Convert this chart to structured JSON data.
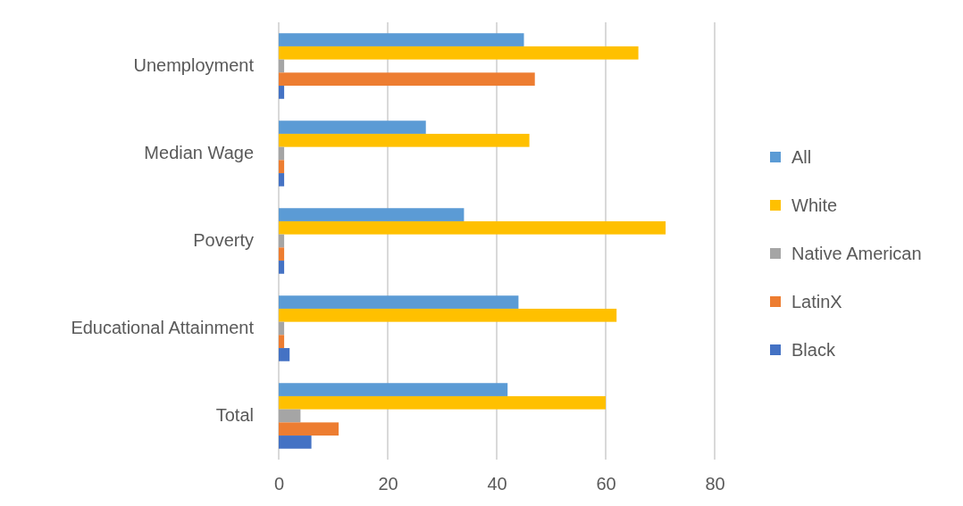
{
  "chart_data": {
    "type": "bar",
    "orientation": "horizontal",
    "categories": [
      "Unemployment",
      "Median Wage",
      "Poverty",
      "Educational Attainment",
      "Total"
    ],
    "series": [
      {
        "name": "All",
        "color": "#5b9bd5",
        "values": [
          45,
          27,
          34,
          44,
          42
        ]
      },
      {
        "name": "White",
        "color": "#ffc000",
        "values": [
          66,
          46,
          71,
          62,
          60
        ]
      },
      {
        "name": "Native American",
        "color": "#a5a5a5",
        "values": [
          1,
          1,
          1,
          1,
          4
        ]
      },
      {
        "name": "LatinX",
        "color": "#ed7d31",
        "values": [
          47,
          1,
          1,
          1,
          11
        ]
      },
      {
        "name": "Black",
        "color": "#4472c4",
        "values": [
          1,
          1,
          1,
          2,
          6
        ]
      }
    ],
    "xlim": [
      0,
      80
    ],
    "xticks": [
      0,
      20,
      40,
      60,
      80
    ],
    "grid": "x",
    "legend": "right"
  }
}
